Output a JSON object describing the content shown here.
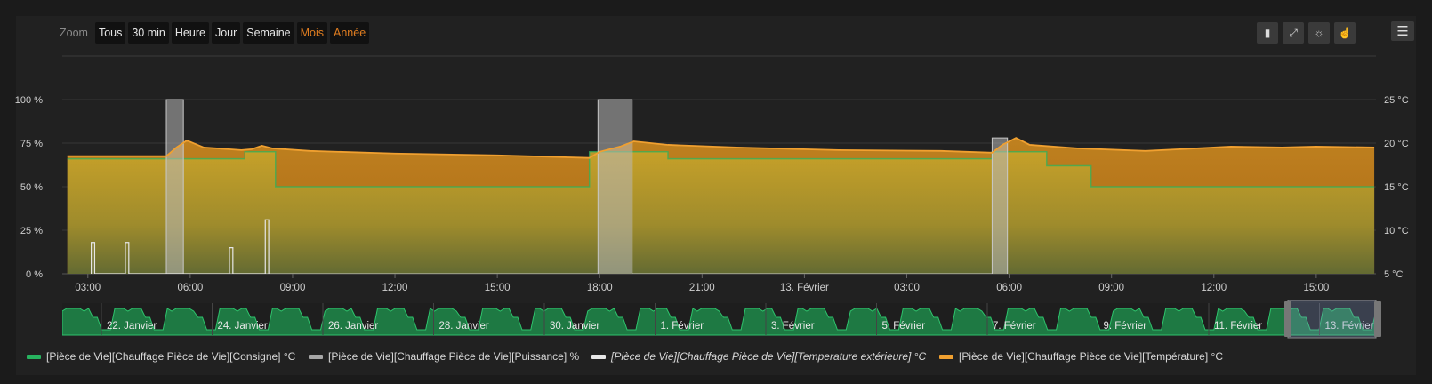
{
  "zoom": {
    "label": "Zoom",
    "buttons": [
      {
        "label": "Tous",
        "active": false
      },
      {
        "label": "30 min",
        "active": false
      },
      {
        "label": "Heure",
        "active": false
      },
      {
        "label": "Jour",
        "active": false
      },
      {
        "label": "Semaine",
        "active": false
      },
      {
        "label": "Mois",
        "active": true
      },
      {
        "label": "Année",
        "active": true
      }
    ]
  },
  "toolbar": {
    "icons": [
      "ruler-icon",
      "collapse-arrows-icon",
      "sun-icon",
      "hand-pointer-icon"
    ],
    "menu_icon": "hamburger-menu-icon"
  },
  "chart_data": {
    "type": "area",
    "x_unit": "hours",
    "xlim": [
      2.25,
      40.75
    ],
    "x_tick_labels": [
      {
        "x": 3,
        "label": "03:00"
      },
      {
        "x": 6,
        "label": "06:00"
      },
      {
        "x": 9,
        "label": "09:00"
      },
      {
        "x": 12,
        "label": "12:00"
      },
      {
        "x": 15,
        "label": "15:00"
      },
      {
        "x": 18,
        "label": "18:00"
      },
      {
        "x": 21,
        "label": "21:00"
      },
      {
        "x": 24,
        "label": "13. Février"
      },
      {
        "x": 27,
        "label": "03:00"
      },
      {
        "x": 30,
        "label": "06:00"
      },
      {
        "x": 33,
        "label": "09:00"
      },
      {
        "x": 36,
        "label": "12:00"
      },
      {
        "x": 39,
        "label": "15:00"
      }
    ],
    "y_left": {
      "min": 0,
      "max": 100,
      "ticks": [
        "0 %",
        "25 %",
        "50 %",
        "75 %",
        "100 %"
      ]
    },
    "y_right": {
      "min": 5,
      "max": 25,
      "ticks": [
        "5 °C",
        "10 °C",
        "15 °C",
        "20 °C",
        "25 °C"
      ]
    },
    "series": [
      {
        "name": "[Pièce de Vie][Chauffage Pièce de Vie][Température] °C",
        "color": "#f0a030",
        "axis": "right",
        "points": [
          [
            2.4,
            18.5
          ],
          [
            5.3,
            18.5
          ],
          [
            5.6,
            19.5
          ],
          [
            5.9,
            20.3
          ],
          [
            6.4,
            19.5
          ],
          [
            7.5,
            19.2
          ],
          [
            7.8,
            19.3
          ],
          [
            8.1,
            19.7
          ],
          [
            8.4,
            19.4
          ],
          [
            9.5,
            19.1
          ],
          [
            12,
            18.8
          ],
          [
            15,
            18.6
          ],
          [
            17.7,
            18.3
          ],
          [
            18.0,
            19.0
          ],
          [
            18.6,
            19.6
          ],
          [
            19.0,
            20.2
          ],
          [
            20,
            19.8
          ],
          [
            22,
            19.5
          ],
          [
            25,
            19.2
          ],
          [
            28,
            19.1
          ],
          [
            29.5,
            18.9
          ],
          [
            29.8,
            19.8
          ],
          [
            30.2,
            20.6
          ],
          [
            30.6,
            19.8
          ],
          [
            32,
            19.4
          ],
          [
            34,
            19.1
          ],
          [
            35,
            19.3
          ],
          [
            36.5,
            19.6
          ],
          [
            38,
            19.5
          ],
          [
            39,
            19.6
          ],
          [
            40.7,
            19.5
          ]
        ]
      },
      {
        "name": "[Pièce de Vie][Chauffage Pièce de Vie][Consigne] °C",
        "color": "#27b35f",
        "axis": "right",
        "points": [
          [
            2.4,
            18.2
          ],
          [
            7.6,
            18.2
          ],
          [
            7.6,
            19.0
          ],
          [
            8.5,
            19.0
          ],
          [
            8.5,
            15.0
          ],
          [
            17.7,
            15.0
          ],
          [
            17.7,
            19.0
          ],
          [
            20.0,
            19.0
          ],
          [
            20.0,
            18.2
          ],
          [
            29.5,
            18.2
          ],
          [
            29.5,
            19.0
          ],
          [
            31.1,
            19.0
          ],
          [
            31.1,
            17.4
          ],
          [
            32.4,
            17.4
          ],
          [
            32.4,
            15.0
          ],
          [
            40.7,
            15.0
          ]
        ]
      },
      {
        "name": "[Pièce de Vie][Chauffage Pièce de Vie][Puissance] %",
        "color": "#a6a6a6",
        "axis": "left",
        "points": [
          [
            5.3,
            0
          ],
          [
            5.3,
            100
          ],
          [
            5.8,
            100
          ],
          [
            5.8,
            0
          ],
          [
            17.95,
            0
          ],
          [
            17.95,
            100
          ],
          [
            18.95,
            100
          ],
          [
            18.95,
            0
          ],
          [
            29.5,
            0
          ],
          [
            29.5,
            78
          ],
          [
            29.95,
            78
          ],
          [
            29.95,
            0
          ]
        ]
      },
      {
        "name": "[Pièce de Vie][Chauffage Pièce de Vie][Temperature extérieure] °C",
        "color": "#e8e8e8",
        "axis": "right",
        "points": [
          [
            3.1,
            5
          ],
          [
            3.1,
            8.6
          ],
          [
            3.2,
            8.6
          ],
          [
            3.2,
            5
          ],
          [
            4.1,
            5
          ],
          [
            4.1,
            8.6
          ],
          [
            4.2,
            8.6
          ],
          [
            4.2,
            5
          ],
          [
            7.15,
            5
          ],
          [
            7.15,
            8.0
          ],
          [
            7.25,
            8.0
          ],
          [
            7.25,
            5
          ],
          [
            8.2,
            5
          ],
          [
            8.2,
            11.2
          ],
          [
            8.3,
            11.2
          ],
          [
            8.3,
            5
          ]
        ]
      }
    ],
    "navigator": {
      "labels": [
        "22. Janvier",
        "24. Janvier",
        "26. Janvier",
        "28. Janvier",
        "30. Janvier",
        "1. Février",
        "3. Février",
        "5. Février",
        "7. Février",
        "9. Février",
        "11. Février",
        "13. Février"
      ],
      "color": "#27b35f"
    },
    "legend_placement": "bottom-left"
  },
  "legend": {
    "items": [
      {
        "label": "[Pièce de Vie][Chauffage Pièce de Vie][Consigne] °C",
        "color": "#27b35f",
        "italic": false
      },
      {
        "label": "[Pièce de Vie][Chauffage Pièce de Vie][Puissance] %",
        "color": "#a6a6a6",
        "italic": false
      },
      {
        "label": "[Pièce de Vie][Chauffage Pièce de Vie][Temperature extérieure] °C",
        "color": "#e8e8e8",
        "italic": true
      },
      {
        "label": "[Pièce de Vie][Chauffage Pièce de Vie][Température] °C",
        "color": "#f0a030",
        "italic": false
      }
    ]
  }
}
